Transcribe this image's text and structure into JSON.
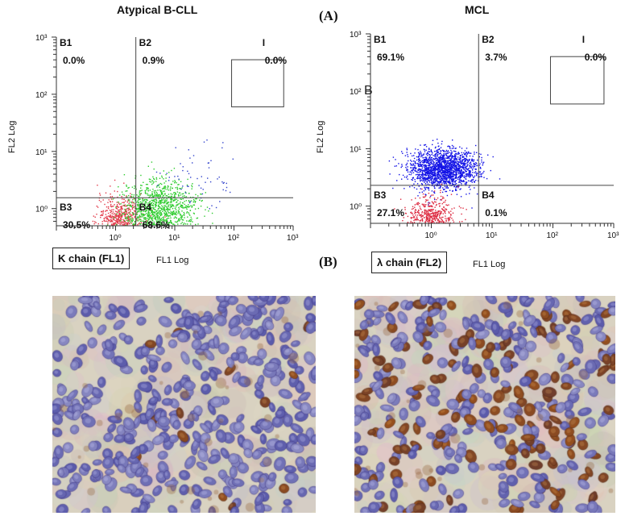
{
  "figure": {
    "panel_a_letter": "(A)",
    "panel_b_letter": "(B)"
  },
  "plots": [
    {
      "title": "Atypical B-CLL",
      "xlabel": "FL1 Log",
      "ylabel": "FL2 Log",
      "stray_mark": "",
      "antibody_label": "K chain (FL1)",
      "quadrants": [
        {
          "name": "B1",
          "value": "0.0%"
        },
        {
          "name": "B2",
          "value": "0.9%"
        },
        {
          "name": "B3",
          "value": "30.5%"
        },
        {
          "name": "B4",
          "value": "68.6%"
        }
      ],
      "gate": {
        "name": "I",
        "value": "0.0%"
      },
      "quadrant_split": {
        "x": 2.2,
        "y": 1.55
      },
      "x_ticks": [
        "10⁰",
        "10¹",
        "10²",
        "10³"
      ],
      "y_ticks": [
        "10³",
        "10²",
        "10¹",
        "10⁰"
      ],
      "populations": [
        {
          "color": "#e23a4a",
          "cx": 1.2,
          "cy": 0.6,
          "sx": 0.35,
          "sy": 0.4,
          "n": 700
        },
        {
          "color": "#2ecc2e",
          "cx": 5.5,
          "cy": 1.0,
          "sx": 0.55,
          "sy": 0.45,
          "n": 1100
        },
        {
          "color": "#3344cc",
          "cx": 25,
          "cy": 3.5,
          "sx": 0.6,
          "sy": 0.45,
          "n": 60
        }
      ]
    },
    {
      "title": "MCL",
      "xlabel": "FL1 Log",
      "ylabel": "FL2 Log",
      "stray_mark": "B",
      "antibody_label": "λ chain (FL2)",
      "quadrants": [
        {
          "name": "B1",
          "value": "69.1%"
        },
        {
          "name": "B2",
          "value": "3.7%"
        },
        {
          "name": "B3",
          "value": "27.1%"
        },
        {
          "name": "B4",
          "value": "0.1%"
        }
      ],
      "gate": {
        "name": "I",
        "value": "0.0%"
      },
      "quadrant_split": {
        "x": 6.0,
        "y": 2.3
      },
      "x_ticks": [
        "10⁰",
        "10¹",
        "10²",
        "10³"
      ],
      "y_ticks": [
        "10³",
        "10²",
        "10¹",
        "10⁰"
      ],
      "populations": [
        {
          "color": "#1414e6",
          "cx": 1.5,
          "cy": 4.5,
          "sx": 0.5,
          "sy": 0.32,
          "n": 1800
        },
        {
          "color": "#dd2a40",
          "cx": 1.0,
          "cy": 0.5,
          "sx": 0.35,
          "sy": 0.4,
          "n": 800
        }
      ]
    }
  ],
  "micrographs": [
    {
      "stain": "kappa",
      "positive_fraction": 0.03
    },
    {
      "stain": "lambda",
      "positive_fraction": 0.35
    }
  ]
}
